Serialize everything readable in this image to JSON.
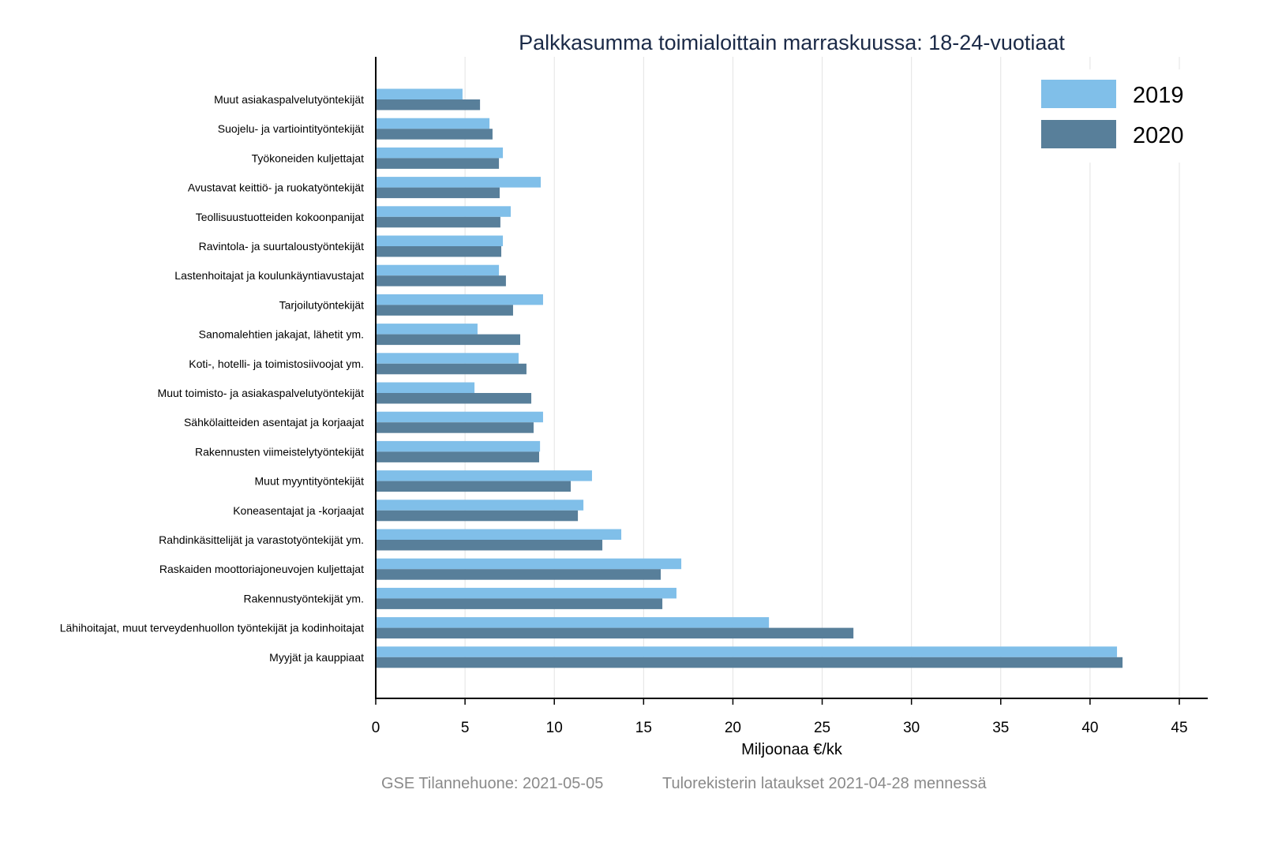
{
  "chart_data": {
    "type": "bar",
    "orientation": "horizontal",
    "title": "Palkkasumma toimialoittain marraskuussa: 18-24-vuotiaat",
    "xlabel": "Miljoonaa €/kk",
    "ylabel": "",
    "xlim": [
      0,
      45
    ],
    "xticks": [
      0,
      5,
      10,
      15,
      20,
      25,
      30,
      35,
      40,
      45
    ],
    "grid": true,
    "legend_position": "top-right",
    "categories": [
      "Muut asiakaspalvelutyöntekijät",
      "Suojelu- ja vartiointityöntekijät",
      "Työkoneiden kuljettajat",
      "Avustavat keittiö- ja ruokatyöntekijät",
      "Teollisuustuotteiden kokoonpanijat",
      "Ravintola- ja suurtaloustyöntekijät",
      "Lastenhoitajat ja koulunkäyntiavustajat",
      "Tarjoilutyöntekijät",
      "Sanomalehtien jakajat, lähetit ym.",
      "Koti-, hotelli- ja toimistosiivoojat ym.",
      "Muut toimisto- ja asiakaspalvelutyöntekijät",
      "Sähkölaitteiden asentajat ja korjaajat",
      "Rakennusten viimeistelytyöntekijät",
      "Muut myyntityöntekijät",
      "Koneasentajat ja -korjaajat",
      "Rahdinkäsittelijät ja varastotyöntekijät ym.",
      "Raskaiden moottoriajoneuvojen kuljettajat",
      "Rakennustyöntekijät ym.",
      "Lähihoitajat, muut terveydenhuollon työntekijät ja kodinhoitajat",
      "Myyjät ja kauppiaat"
    ],
    "series": [
      {
        "name": "2019",
        "color": "#80bfe9",
        "values": [
          4.86,
          6.37,
          7.12,
          9.24,
          7.56,
          7.12,
          6.9,
          9.37,
          5.7,
          8.0,
          5.53,
          9.37,
          9.2,
          12.11,
          11.63,
          13.75,
          17.11,
          16.84,
          22.02,
          41.51
        ]
      },
      {
        "name": "2020",
        "color": "#587f9a",
        "values": [
          5.84,
          6.54,
          6.9,
          6.94,
          6.98,
          7.03,
          7.29,
          7.69,
          8.09,
          8.44,
          8.71,
          8.84,
          9.15,
          10.92,
          11.32,
          12.69,
          15.96,
          16.05,
          26.75,
          41.82
        ]
      }
    ]
  },
  "footer": {
    "source": "GSE Tilannehuone: 2021-05-05",
    "note": "Tulorekisterin lataukset 2021-04-28 mennessä"
  }
}
